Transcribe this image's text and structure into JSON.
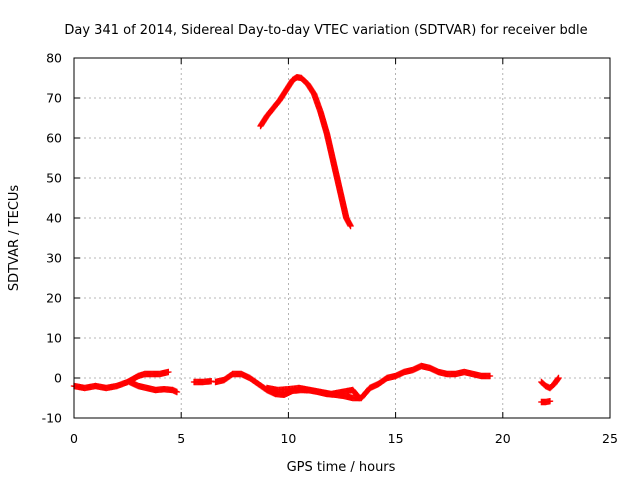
{
  "chart_data": {
    "type": "scatter",
    "title": "Day 341 of 2014, Sidereal Day-to-day VTEC variation (SDTVAR) for receiver bdle",
    "xlabel": "GPS time / hours",
    "ylabel": "SDTVAR / TECUs",
    "xlim": [
      0,
      25
    ],
    "ylim": [
      -10,
      80
    ],
    "xticks": [
      0,
      5,
      10,
      15,
      20,
      25
    ],
    "yticks": [
      -10,
      0,
      10,
      20,
      30,
      40,
      50,
      60,
      70,
      80
    ],
    "xtick_labels": [
      "0",
      "5",
      "10",
      "15",
      "20",
      "25"
    ],
    "ytick_labels": [
      "-10",
      "0",
      "10",
      "20",
      "30",
      "40",
      "50",
      "60",
      "70",
      "80"
    ],
    "grid": true,
    "marker": "+",
    "color": "#ff0000",
    "series": [
      {
        "name": "SDTVAR",
        "segments": [
          {
            "x": [
              0,
              0.5,
              1.0,
              1.5,
              2.0,
              2.5,
              3.0,
              3.3,
              3.6,
              4.0,
              4.4
            ],
            "y": [
              -2,
              -2.5,
              -2,
              -2.5,
              -2,
              -1,
              0.5,
              1,
              1,
              1,
              1.5
            ]
          },
          {
            "x": [
              2.6,
              3.0,
              3.4,
              3.8,
              4.2,
              4.6,
              4.8
            ],
            "y": [
              -1,
              -2,
              -2.5,
              -3,
              -2.8,
              -3,
              -3.5
            ]
          },
          {
            "x": [
              5.6,
              6.0,
              6.4
            ],
            "y": [
              -1,
              -1,
              -0.8
            ]
          },
          {
            "x": [
              6.6,
              7.0,
              7.4,
              7.8,
              8.2,
              8.6,
              9.0,
              9.4,
              9.8,
              10.2,
              10.6,
              11.0,
              11.4,
              11.8,
              12.2,
              12.6,
              13.0,
              13.4,
              13.8,
              14.2,
              14.6,
              15.0,
              15.4,
              15.8,
              16.2,
              16.6,
              17.0,
              17.4,
              17.8,
              18.2,
              18.6,
              19.0,
              19.4
            ],
            "y": [
              -1,
              -0.5,
              1,
              1,
              0,
              -1.5,
              -3,
              -4,
              -4.2,
              -3.2,
              -3,
              -3.1,
              -3.5,
              -4,
              -4.2,
              -4.5,
              -5,
              -5,
              -2.5,
              -1.5,
              0,
              0.5,
              1.5,
              2,
              3,
              2.5,
              1.5,
              1,
              1,
              1.5,
              1,
              0.5,
              0.5
            ]
          },
          {
            "x": [
              9.0,
              9.5,
              10.0,
              10.5,
              11.0,
              11.5,
              12.0,
              12.5,
              13.0,
              13.3
            ],
            "y": [
              -2.5,
              -3,
              -2.8,
              -2.5,
              -3,
              -3.5,
              -4,
              -3.5,
              -3,
              -5
            ]
          },
          {
            "x": [
              21.8,
              22.0,
              22.2,
              22.4,
              22.6
            ],
            "y": [
              -1,
              -2,
              -2.5,
              -1.5,
              0
            ]
          },
          {
            "x": [
              21.8,
              22.0,
              22.2
            ],
            "y": [
              -6,
              -6,
              -5.8
            ]
          },
          {
            "x": [
              8.7,
              9.0,
              9.3,
              9.6,
              9.9,
              10.2,
              10.4,
              10.6,
              10.9,
              11.2,
              11.5,
              11.8,
              12.1,
              12.4,
              12.7,
              12.9
            ],
            "y": [
              63,
              65.5,
              67.5,
              69.5,
              72,
              74.5,
              75.2,
              75,
              73.5,
              71,
              66.5,
              61,
              54,
              47,
              40,
              38
            ]
          }
        ]
      }
    ]
  }
}
